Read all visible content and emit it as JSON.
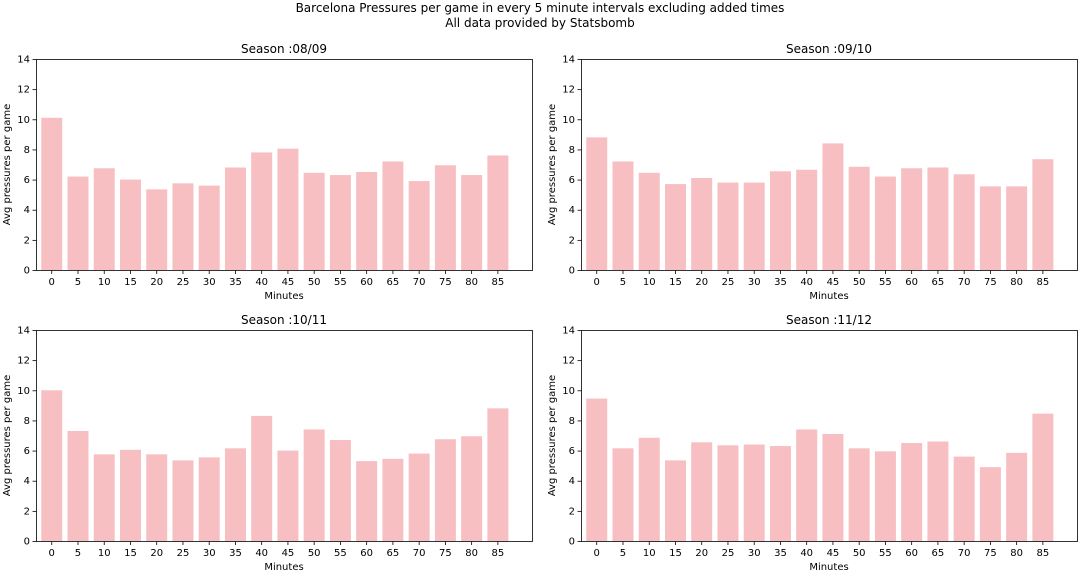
{
  "figure": {
    "title_line1": "Barcelona Pressures per game in every 5 minute intervals excluding added times",
    "title_line2": "All data provided by Statsbomb"
  },
  "colors": {
    "bar": "#f7bfc1",
    "axis": "#000000"
  },
  "chart_data": [
    {
      "type": "bar",
      "title": "Season :08/09",
      "xlabel": "Minutes",
      "ylabel": "Avg pressures per game",
      "x": [
        0,
        5,
        10,
        15,
        20,
        25,
        30,
        35,
        40,
        45,
        50,
        55,
        60,
        65,
        70,
        75,
        80,
        85
      ],
      "values": [
        10.1,
        6.2,
        6.75,
        6.0,
        5.35,
        5.75,
        5.6,
        6.8,
        7.8,
        8.05,
        6.45,
        6.3,
        6.5,
        7.2,
        5.9,
        6.95,
        6.3,
        7.6
      ],
      "ylim": [
        0,
        14
      ],
      "yticks": [
        0,
        2,
        4,
        6,
        8,
        10,
        12,
        14
      ],
      "xticks": [
        0,
        5,
        10,
        15,
        20,
        25,
        30,
        35,
        40,
        45,
        50,
        55,
        60,
        65,
        70,
        75,
        80,
        85
      ]
    },
    {
      "type": "bar",
      "title": "Season :09/10",
      "xlabel": "Minutes",
      "ylabel": "Avg pressures per game",
      "x": [
        0,
        5,
        10,
        15,
        20,
        25,
        30,
        35,
        40,
        45,
        50,
        55,
        60,
        65,
        70,
        75,
        80,
        85
      ],
      "values": [
        8.8,
        7.2,
        6.45,
        5.7,
        6.1,
        5.8,
        5.8,
        6.55,
        6.65,
        8.4,
        6.85,
        6.2,
        6.75,
        6.8,
        6.35,
        5.55,
        5.55,
        7.35
      ],
      "ylim": [
        0,
        14
      ],
      "yticks": [
        0,
        2,
        4,
        6,
        8,
        10,
        12,
        14
      ],
      "xticks": [
        0,
        5,
        10,
        15,
        20,
        25,
        30,
        35,
        40,
        45,
        50,
        55,
        60,
        65,
        70,
        75,
        80,
        85
      ]
    },
    {
      "type": "bar",
      "title": "Season :10/11",
      "xlabel": "Minutes",
      "ylabel": "Avg pressures per game",
      "x": [
        0,
        5,
        10,
        15,
        20,
        25,
        30,
        35,
        40,
        45,
        50,
        55,
        60,
        65,
        70,
        75,
        80,
        85
      ],
      "values": [
        10.0,
        7.3,
        5.75,
        6.05,
        5.75,
        5.35,
        5.55,
        6.15,
        8.3,
        6.0,
        7.4,
        6.7,
        5.3,
        5.45,
        5.8,
        6.75,
        6.95,
        8.8
      ],
      "ylim": [
        0,
        14
      ],
      "yticks": [
        0,
        2,
        4,
        6,
        8,
        10,
        12,
        14
      ],
      "xticks": [
        0,
        5,
        10,
        15,
        20,
        25,
        30,
        35,
        40,
        45,
        50,
        55,
        60,
        65,
        70,
        75,
        80,
        85
      ]
    },
    {
      "type": "bar",
      "title": "Season :11/12",
      "xlabel": "Minutes",
      "ylabel": "Avg pressures per game",
      "x": [
        0,
        5,
        10,
        15,
        20,
        25,
        30,
        35,
        40,
        45,
        50,
        55,
        60,
        65,
        70,
        75,
        80,
        85
      ],
      "values": [
        9.45,
        6.15,
        6.85,
        5.35,
        6.55,
        6.35,
        6.4,
        6.3,
        7.4,
        7.1,
        6.15,
        5.95,
        6.5,
        6.6,
        5.6,
        4.9,
        5.85,
        8.45
      ],
      "ylim": [
        0,
        14
      ],
      "yticks": [
        0,
        2,
        4,
        6,
        8,
        10,
        12,
        14
      ],
      "xticks": [
        0,
        5,
        10,
        15,
        20,
        25,
        30,
        35,
        40,
        45,
        50,
        55,
        60,
        65,
        70,
        75,
        80,
        85
      ]
    }
  ]
}
